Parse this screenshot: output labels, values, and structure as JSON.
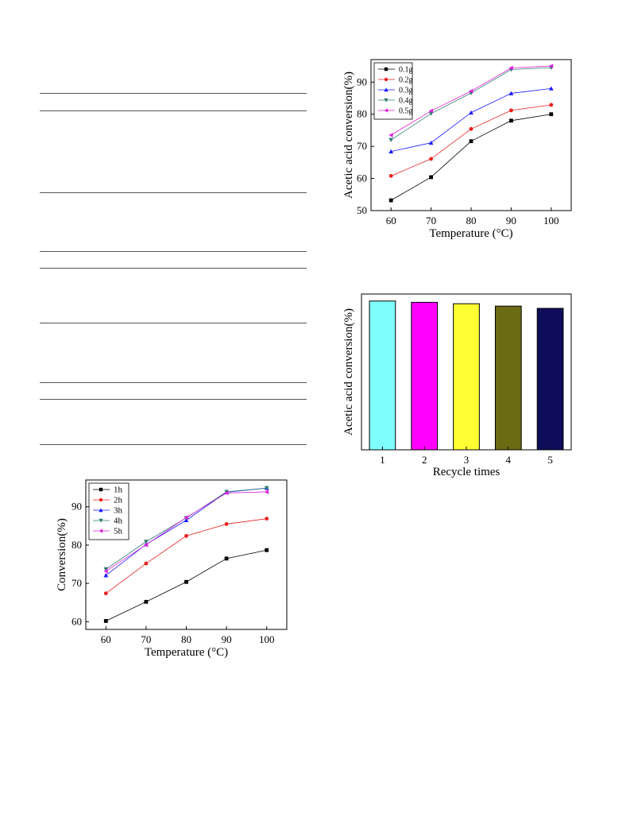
{
  "rules": [
    {
      "id": "r1"
    },
    {
      "id": "r2"
    },
    {
      "id": "r3"
    },
    {
      "id": "r4"
    },
    {
      "id": "r5"
    },
    {
      "id": "r6"
    },
    {
      "id": "r7"
    },
    {
      "id": "r8"
    },
    {
      "id": "r9"
    }
  ],
  "chart_data": [
    {
      "type": "line",
      "title": "",
      "xlabel": "Temperature (°C)",
      "ylabel": "Acetic acid conversion(%)",
      "x": [
        60,
        70,
        80,
        90,
        100
      ],
      "xlim": [
        55,
        105
      ],
      "ylim": [
        50,
        97
      ],
      "yticks": [
        50,
        60,
        70,
        80,
        90
      ],
      "legend_position": "top-left",
      "series": [
        {
          "name": "0.1g",
          "marker": "square",
          "color": "#000000",
          "values": [
            53.2,
            60.4,
            71.6,
            78.0,
            80.0
          ]
        },
        {
          "name": "0.2g",
          "marker": "circle",
          "color": "#e8201f",
          "values": [
            60.8,
            66.1,
            75.4,
            81.2,
            82.9
          ]
        },
        {
          "name": "0.3g",
          "marker": "triangle-up",
          "color": "#1a1aff",
          "values": [
            68.4,
            71.1,
            80.5,
            86.5,
            88.0
          ]
        },
        {
          "name": "0.4g",
          "marker": "triangle-down",
          "color": "#2e7d6e",
          "values": [
            72.0,
            80.2,
            86.6,
            93.9,
            94.5
          ]
        },
        {
          "name": "0.5g",
          "marker": "triangle-left",
          "color": "#dd22dd",
          "values": [
            73.5,
            81.0,
            87.2,
            94.4,
            95.0
          ]
        }
      ]
    },
    {
      "type": "bar",
      "title": "",
      "xlabel": "Recycle times",
      "ylabel": "Acetic acid conversion(%)",
      "categories": [
        "1",
        "2",
        "3",
        "4",
        "5"
      ],
      "values": [
        93.6,
        92.8,
        91.9,
        90.4,
        89.0
      ],
      "ylim": [
        0,
        98
      ],
      "colors": [
        "#80ffff",
        "#ff00ff",
        "#ffff33",
        "#6b6b14",
        "#0d0d5a"
      ]
    },
    {
      "type": "line",
      "title": "",
      "xlabel": "Temperature (°C)",
      "ylabel": "Conversion(%)",
      "x": [
        60,
        70,
        80,
        90,
        100
      ],
      "xlim": [
        55,
        105
      ],
      "ylim": [
        58,
        97
      ],
      "yticks": [
        60,
        70,
        80,
        90
      ],
      "legend_position": "top-left",
      "series": [
        {
          "name": "1h",
          "marker": "square",
          "color": "#000000",
          "values": [
            60.2,
            65.2,
            70.4,
            76.5,
            78.7
          ]
        },
        {
          "name": "2h",
          "marker": "circle",
          "color": "#e8201f",
          "values": [
            67.4,
            75.2,
            82.4,
            85.5,
            86.9
          ]
        },
        {
          "name": "3h",
          "marker": "triangle-up",
          "color": "#1a1aff",
          "values": [
            72.1,
            80.2,
            86.5,
            93.8,
            94.9
          ]
        },
        {
          "name": "4h",
          "marker": "triangle-down",
          "color": "#2e7d6e",
          "values": [
            73.7,
            80.9,
            87.1,
            93.9,
            94.9
          ]
        },
        {
          "name": "5h",
          "marker": "triangle-left",
          "color": "#dd22dd",
          "values": [
            73.2,
            80.1,
            87.2,
            93.6,
            93.9
          ]
        }
      ]
    }
  ]
}
